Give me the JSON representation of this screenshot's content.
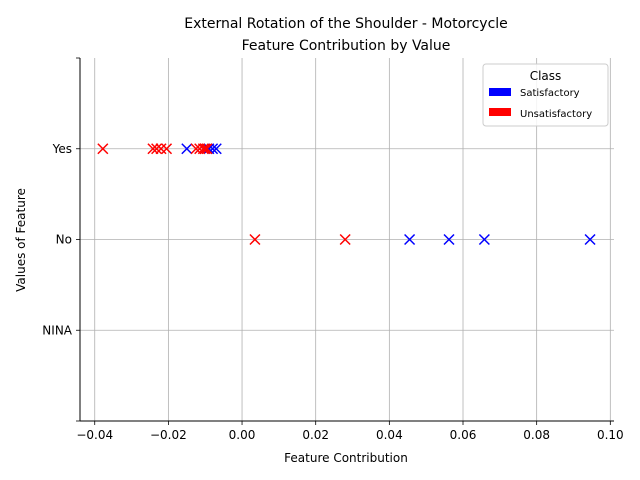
{
  "chart_data": {
    "type": "scatter",
    "title": [
      "External Rotation of the Shoulder - Motorcycle",
      "Feature Contribution by Value"
    ],
    "xlabel": "Feature Contribution",
    "ylabel": "Values of Feature",
    "xlim": [
      -0.044,
      0.101
    ],
    "xticks": [
      -0.04,
      -0.02,
      0.0,
      0.02,
      0.04,
      0.06,
      0.08,
      0.1
    ],
    "xtick_labels": [
      "−0.04",
      "−0.02",
      "0.00",
      "0.02",
      "0.04",
      "0.06",
      "0.08",
      "0.10"
    ],
    "y_categories": [
      "NINA",
      "No",
      "Yes"
    ],
    "ylim": [
      -1,
      3
    ],
    "grid": true,
    "legend": {
      "title": "Class",
      "placement": "top-right",
      "entries": [
        {
          "label": "Satisfactory",
          "color": "#0000ff"
        },
        {
          "label": "Unsatisfactory",
          "color": "#ff0000"
        }
      ]
    },
    "series": [
      {
        "name": "Satisfactory",
        "color": "#0000ff",
        "marker": "x",
        "points": [
          {
            "x": -0.015,
            "y": "Yes"
          },
          {
            "x": -0.009,
            "y": "Yes"
          },
          {
            "x": -0.008,
            "y": "Yes"
          },
          {
            "x": -0.007,
            "y": "Yes"
          },
          {
            "x": 0.0455,
            "y": "No"
          },
          {
            "x": 0.0562,
            "y": "No"
          },
          {
            "x": 0.0658,
            "y": "No"
          },
          {
            "x": 0.0945,
            "y": "No"
          }
        ]
      },
      {
        "name": "Unsatisfactory",
        "color": "#ff0000",
        "marker": "x",
        "points": [
          {
            "x": -0.0378,
            "y": "Yes"
          },
          {
            "x": -0.0242,
            "y": "Yes"
          },
          {
            "x": -0.0232,
            "y": "Yes"
          },
          {
            "x": -0.022,
            "y": "Yes"
          },
          {
            "x": -0.0205,
            "y": "Yes"
          },
          {
            "x": -0.0125,
            "y": "Yes"
          },
          {
            "x": -0.0115,
            "y": "Yes"
          },
          {
            "x": -0.0105,
            "y": "Yes"
          },
          {
            "x": -0.01,
            "y": "Yes"
          },
          {
            "x": -0.0095,
            "y": "Yes"
          },
          {
            "x": 0.0035,
            "y": "No"
          },
          {
            "x": 0.028,
            "y": "No"
          }
        ]
      }
    ]
  }
}
